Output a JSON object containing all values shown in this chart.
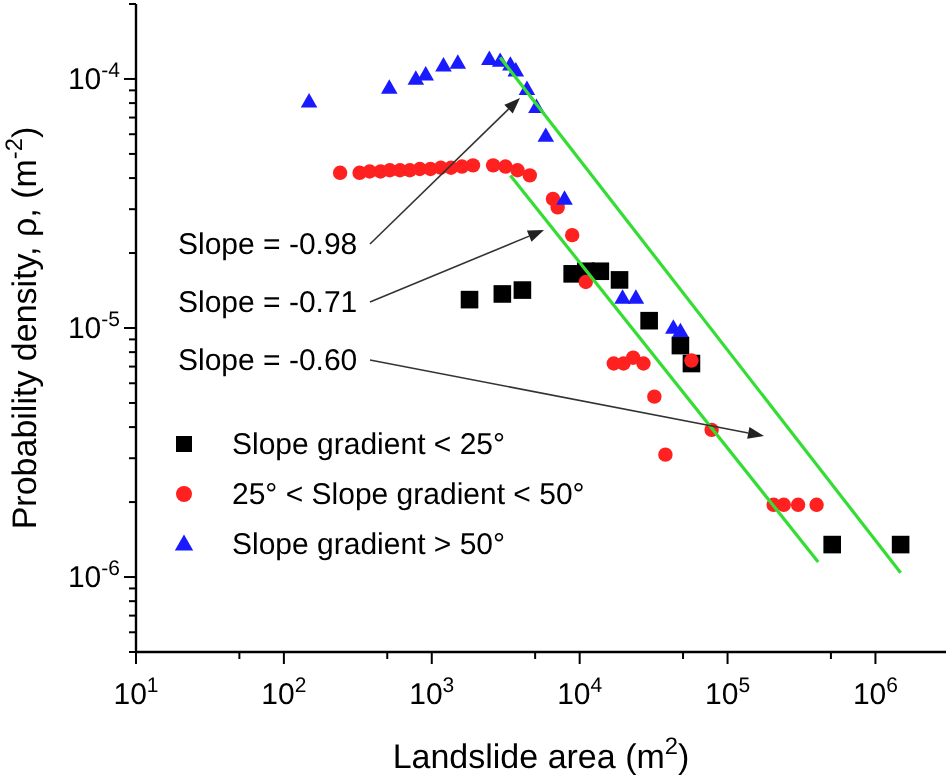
{
  "chart_data": {
    "type": "scatter",
    "xlabel": "Landslide area (m$^{2}$)",
    "ylabel": "Probability density, ρ, (m$^{-2}$)",
    "log": "xy",
    "legend": "bottom left",
    "xlim": [
      10,
      3000000
    ],
    "ylim": [
      5e-07,
      0.0002
    ],
    "xticks": [
      {
        "value": 10,
        "label": "10$^{1}$"
      },
      {
        "value": 50,
        "label": null
      },
      {
        "value": 100,
        "label": "10$^{2}$"
      },
      {
        "value": 500,
        "label": null
      },
      {
        "value": 1000,
        "label": "10$^{3}$"
      },
      {
        "value": 5000,
        "label": null
      },
      {
        "value": 10000,
        "label": "10$^{4}$"
      },
      {
        "value": 50000,
        "label": null
      },
      {
        "value": 100000,
        "label": "10$^{5}$"
      },
      {
        "value": 500000,
        "label": null
      },
      {
        "value": 1000000,
        "label": "10$^{6}$"
      }
    ],
    "yticks": [
      {
        "value": 5e-07,
        "label": null
      },
      {
        "value": 6e-07,
        "label": null
      },
      {
        "value": 7e-07,
        "label": null
      },
      {
        "value": 8e-07,
        "label": null
      },
      {
        "value": 9e-07,
        "label": null
      },
      {
        "value": 1e-06,
        "label": "10$^{-6}$"
      },
      {
        "value": 2e-06,
        "label": null
      },
      {
        "value": 3e-06,
        "label": null
      },
      {
        "value": 4e-06,
        "label": null
      },
      {
        "value": 5e-06,
        "label": null
      },
      {
        "value": 6e-06,
        "label": null
      },
      {
        "value": 7e-06,
        "label": null
      },
      {
        "value": 8e-06,
        "label": null
      },
      {
        "value": 9e-06,
        "label": null
      },
      {
        "value": 1e-05,
        "label": "10$^{-5}$"
      },
      {
        "value": 2e-05,
        "label": null
      },
      {
        "value": 3e-05,
        "label": null
      },
      {
        "value": 4e-05,
        "label": null
      },
      {
        "value": 5e-05,
        "label": null
      },
      {
        "value": 6e-05,
        "label": null
      },
      {
        "value": 7e-05,
        "label": null
      },
      {
        "value": 8e-05,
        "label": null
      },
      {
        "value": 9e-05,
        "label": null
      },
      {
        "value": 0.0001,
        "label": "10$^{-4}$"
      },
      {
        "value": 0.0002,
        "label": null
      }
    ],
    "series": [
      {
        "name": "Slope gradient < 25°",
        "color": "#000000",
        "marker": "square",
        "x": [
          1800,
          3000,
          4100,
          8900,
          11000,
          13800,
          18600,
          29500,
          48000,
          57000,
          510000,
          1480000
        ],
        "values": [
          1.3e-05,
          1.37e-05,
          1.42e-05,
          1.65e-05,
          1.69e-05,
          1.69e-05,
          1.56e-05,
          1.07e-05,
          8.5e-06,
          7.2e-06,
          1.35e-06,
          1.35e-06
        ]
      },
      {
        "name": "25° < Slope gradient < 50°",
        "color": "#ff2020",
        "marker": "circle",
        "x": [
          240,
          325,
          380,
          450,
          520,
          610,
          710,
          830,
          980,
          1150,
          1350,
          1600,
          1900,
          2600,
          3150,
          3800,
          4600,
          6600,
          7100,
          8900,
          11000,
          17000,
          19800,
          23000,
          27000,
          32000,
          38000,
          57000,
          78000,
          205000,
          240000,
          300000,
          400000
        ],
        "values": [
          4.2e-05,
          4.2e-05,
          4.25e-05,
          4.25e-05,
          4.3e-05,
          4.3e-05,
          4.3e-05,
          4.35e-05,
          4.35e-05,
          4.4e-05,
          4.4e-05,
          4.45e-05,
          4.5e-05,
          4.5e-05,
          4.45e-05,
          4.3e-05,
          4.1e-05,
          3.3e-05,
          3.05e-05,
          2.36e-05,
          1.53e-05,
          7.2e-06,
          7.2e-06,
          7.6e-06,
          7.2e-06,
          5.3e-06,
          3.1e-06,
          7.4e-06,
          3.9e-06,
          1.95e-06,
          1.95e-06,
          1.95e-06,
          1.95e-06
        ]
      },
      {
        "name": "Slope gradient > 50°",
        "color": "#1a1aff",
        "marker": "triangle",
        "x": [
          148,
          516,
          780,
          910,
          1200,
          1500,
          2450,
          2900,
          3400,
          3700,
          4400,
          5100,
          5900,
          7900,
          19500,
          24000,
          43000,
          48000
        ],
        "values": [
          8.1e-05,
          9.2e-05,
          0.0001,
          0.000104,
          0.000113,
          0.000116,
          0.00012,
          0.000118,
          0.000114,
          0.000108,
          9.1e-05,
          7.7e-05,
          5.9e-05,
          3.3e-05,
          1.32e-05,
          1.32e-05,
          1e-05,
          9.7e-06
        ]
      },
      {
        "type": "line",
        "color": "#33dd33",
        "marker": "none",
        "x": [
          2900,
          1480000
        ],
        "values": [
          0.000122,
          1.04e-06
        ]
      },
      {
        "type": "line",
        "color": "#33dd33",
        "marker": "none",
        "x": [
          3400,
          410000
        ],
        "values": [
          4.1e-05,
          1.15e-06
        ]
      }
    ],
    "annotations": [
      "Slope = -0.98",
      "Slope = -0.71",
      "Slope = -0.60"
    ]
  }
}
